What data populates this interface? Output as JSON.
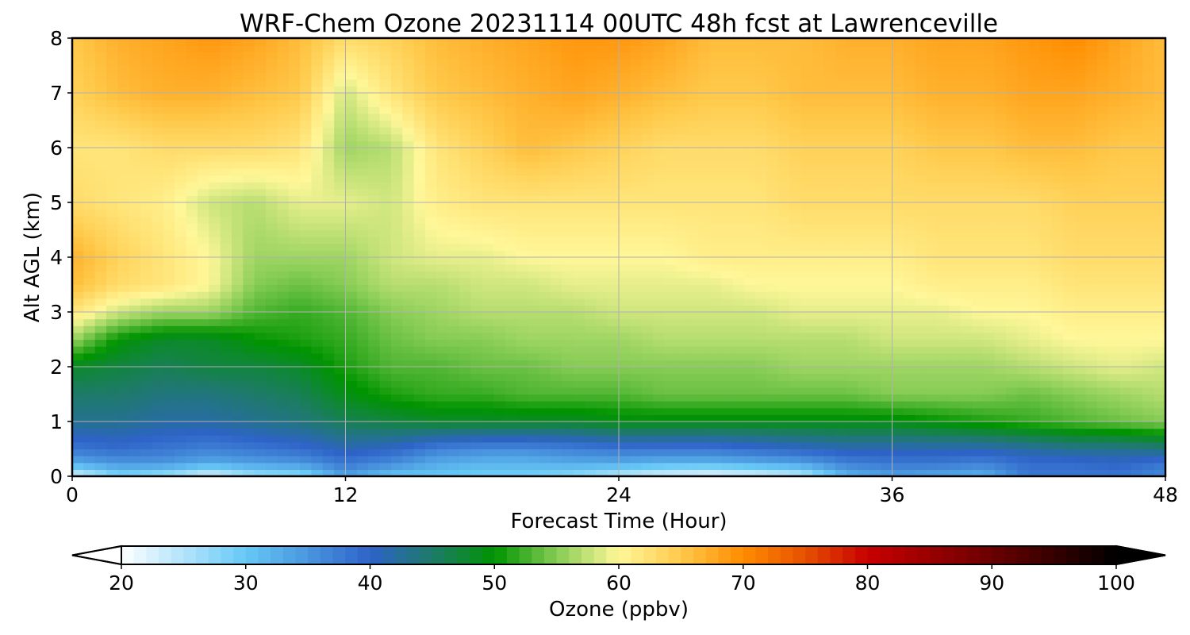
{
  "chart_data": {
    "type": "heatmap",
    "title": "WRF-Chem Ozone  20231114 00UTC 48h fcst at Lawrenceville",
    "xlabel": "Forecast Time (Hour)",
    "ylabel": "Alt AGL (km)",
    "xlim": [
      0,
      48
    ],
    "ylim": [
      0,
      8
    ],
    "x_ticks": [
      0,
      12,
      24,
      36,
      48
    ],
    "y_ticks": [
      0,
      1,
      2,
      3,
      4,
      5,
      6,
      7,
      8
    ],
    "grid": true,
    "colorbar": {
      "label": "Ozone  (ppbv)",
      "orientation": "horizontal",
      "placement": "bottom",
      "min": 20,
      "max": 100,
      "ticks": [
        20,
        30,
        40,
        50,
        60,
        70,
        80,
        90,
        100
      ],
      "extend": "both",
      "colors": [
        {
          "value": 20,
          "color": "#ffffff"
        },
        {
          "value": 30,
          "color": "#66c8f5"
        },
        {
          "value": 40,
          "color": "#2e63c8"
        },
        {
          "value": 45,
          "color": "#1e7a6a"
        },
        {
          "value": 50,
          "color": "#009400"
        },
        {
          "value": 55,
          "color": "#86cc55"
        },
        {
          "value": 60,
          "color": "#fff799"
        },
        {
          "value": 65,
          "color": "#ffc94a"
        },
        {
          "value": 70,
          "color": "#ff8c00"
        },
        {
          "value": 75,
          "color": "#e65000"
        },
        {
          "value": 80,
          "color": "#c80000"
        },
        {
          "value": 90,
          "color": "#6a0000"
        },
        {
          "value": 100,
          "color": "#000000"
        }
      ]
    },
    "x_hours": [
      0,
      2,
      4,
      6,
      8,
      10,
      12,
      14,
      16,
      18,
      20,
      22,
      24,
      26,
      28,
      30,
      32,
      34,
      36,
      38,
      40,
      42,
      44,
      46,
      48
    ],
    "y_km": [
      0,
      0.25,
      0.5,
      1,
      1.5,
      2,
      2.5,
      3,
      3.5,
      4,
      5,
      6,
      7,
      8
    ],
    "values_ppbv": [
      [
        22,
        28,
        26,
        22,
        26,
        27,
        34,
        30,
        30,
        29,
        29,
        27,
        24,
        22,
        21,
        22,
        24,
        32,
        34,
        33,
        32,
        38,
        38,
        38,
        36
      ],
      [
        33,
        35,
        35,
        33,
        34,
        35,
        38,
        36,
        33,
        32,
        32,
        33,
        33,
        32,
        32,
        33,
        34,
        37,
        38,
        38,
        37,
        39,
        39,
        40,
        38
      ],
      [
        38,
        39,
        38,
        37,
        38,
        39,
        41,
        40,
        37,
        36,
        36,
        37,
        38,
        38,
        38,
        39,
        40,
        41,
        41,
        41,
        41,
        42,
        43,
        43,
        44
      ],
      [
        43,
        43,
        42,
        42,
        43,
        44,
        46,
        47,
        48,
        48,
        48,
        48,
        49,
        49,
        49,
        49,
        49,
        49,
        49,
        50,
        51,
        52,
        53,
        54,
        55
      ],
      [
        45,
        45,
        44,
        44,
        45,
        46,
        49,
        51,
        52,
        52,
        53,
        53,
        53,
        54,
        54,
        54,
        54,
        54,
        55,
        55,
        55,
        54,
        55,
        56,
        57
      ],
      [
        48,
        47,
        46,
        47,
        47,
        48,
        51,
        53,
        53,
        54,
        54,
        55,
        55,
        55,
        55,
        55,
        56,
        56,
        56,
        56,
        56,
        57,
        58,
        59,
        58
      ],
      [
        56,
        50,
        48,
        48,
        50,
        51,
        52,
        54,
        55,
        55,
        56,
        56,
        56,
        57,
        57,
        57,
        57,
        57,
        58,
        58,
        58,
        59,
        60,
        60,
        60
      ],
      [
        62,
        58,
        56,
        56,
        53,
        52,
        53,
        55,
        56,
        57,
        57,
        57,
        58,
        58,
        58,
        58,
        59,
        59,
        59,
        59,
        60,
        60,
        61,
        61,
        61
      ],
      [
        66,
        63,
        62,
        60,
        55,
        54,
        55,
        57,
        57,
        58,
        58,
        59,
        59,
        59,
        59,
        60,
        60,
        60,
        60,
        61,
        61,
        61,
        62,
        62,
        62
      ],
      [
        67,
        64,
        62,
        60,
        56,
        56,
        56,
        58,
        59,
        59,
        60,
        60,
        60,
        60,
        61,
        61,
        61,
        61,
        61,
        62,
        62,
        62,
        63,
        63,
        63
      ],
      [
        63,
        62,
        61,
        58,
        57,
        59,
        59,
        58,
        61,
        62,
        62,
        62,
        62,
        62,
        62,
        62,
        63,
        63,
        63,
        63,
        63,
        63,
        64,
        64,
        64
      ],
      [
        62,
        62,
        63,
        63,
        63,
        62,
        56,
        57,
        62,
        64,
        66,
        65,
        64,
        63,
        63,
        63,
        64,
        64,
        64,
        65,
        65,
        66,
        66,
        65,
        65
      ],
      [
        64,
        66,
        67,
        67,
        66,
        65,
        58,
        62,
        65,
        66,
        67,
        68,
        67,
        66,
        65,
        65,
        66,
        66,
        66,
        67,
        67,
        68,
        68,
        67,
        66
      ],
      [
        65,
        67,
        68,
        69,
        68,
        66,
        63,
        64,
        66,
        67,
        68,
        69,
        69,
        68,
        66,
        66,
        66,
        67,
        67,
        68,
        68,
        69,
        70,
        68,
        66
      ]
    ]
  }
}
